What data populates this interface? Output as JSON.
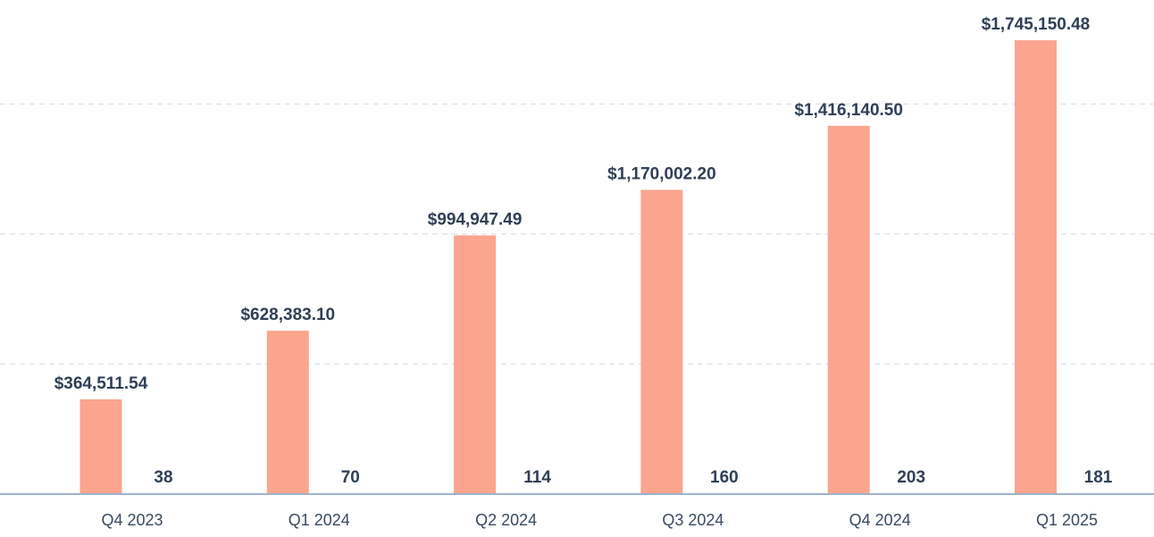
{
  "chart_data": {
    "type": "bar",
    "title": "",
    "xlabel": "",
    "ylabel": "",
    "categories": [
      "Q4 2023",
      "Q1 2024",
      "Q2 2024",
      "Q3 2024",
      "Q4 2024",
      "Q1 2025"
    ],
    "series": [
      {
        "name": "",
        "values": [
          364511.54,
          628383.1,
          994947.49,
          1170002.2,
          1416140.5,
          1745150.48
        ],
        "labels": [
          "$364,511.54",
          "$628,383.10",
          "$994,947.49",
          "$1,170,002.20",
          "$1,416,140.50",
          "$1,745,150.48"
        ],
        "color": "#fba48e"
      },
      {
        "name": "",
        "values": [
          38,
          70,
          114,
          160,
          203,
          181
        ],
        "labels": [
          "38",
          "70",
          "114",
          "160",
          "203",
          "181"
        ]
      }
    ],
    "ylim": [
      0,
      1900000
    ],
    "grid": true,
    "legend": "none"
  }
}
